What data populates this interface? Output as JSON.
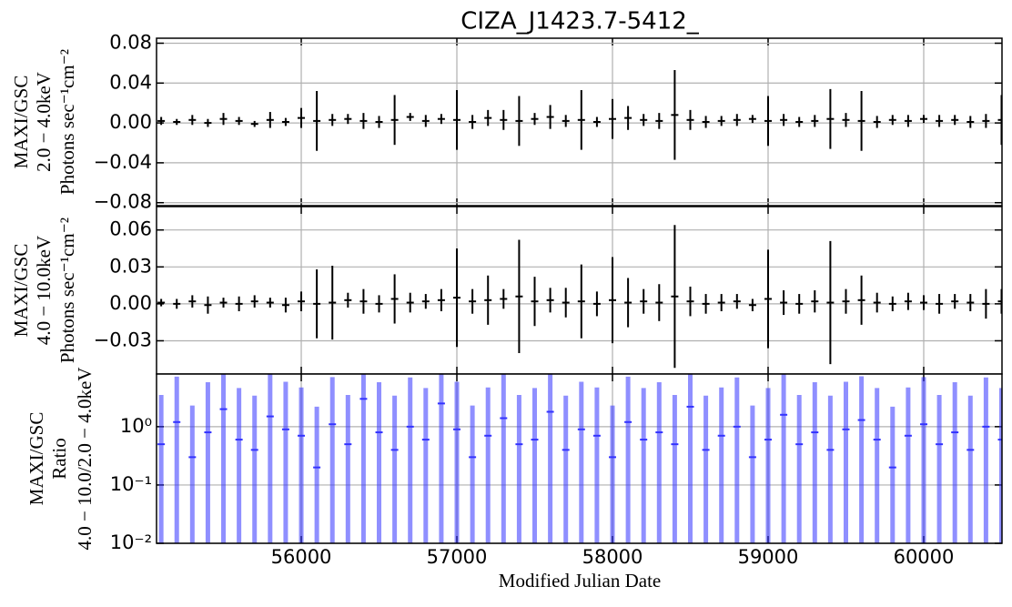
{
  "chart_data": [
    {
      "type": "errorbar",
      "title": "CIZA_J1423.7-5412_",
      "ylabel": [
        "MAXI/GSC",
        "2.0 − 4.0keV",
        "Photons sec⁻¹cm⁻²"
      ],
      "color": "#000000",
      "grid": true,
      "log_y": false,
      "show_xticklabels": false,
      "xlim": [
        55070,
        60503
      ],
      "xticks": [
        56000,
        57000,
        58000,
        59000,
        60000
      ],
      "ylim": [
        -0.083,
        0.085
      ],
      "yticks": [
        {
          "value": 0.08,
          "label": "0.08"
        },
        {
          "value": 0.04,
          "label": "0.04"
        },
        {
          "value": 0,
          "label": "0.00"
        },
        {
          "value": -0.04,
          "label": "−0.04"
        },
        {
          "value": -0.08,
          "label": "−0.08"
        }
      ],
      "x": [
        55100,
        55200,
        55300,
        55400,
        55500,
        55600,
        55700,
        55800,
        55900,
        56000,
        56100,
        56200,
        56300,
        56400,
        56500,
        56600,
        56700,
        56800,
        56900,
        57000,
        57100,
        57200,
        57300,
        57400,
        57500,
        57600,
        57700,
        57800,
        57900,
        58000,
        58100,
        58200,
        58300,
        58400,
        58500,
        58600,
        58700,
        58800,
        58900,
        59000,
        59100,
        59200,
        59300,
        59400,
        59500,
        59600,
        59700,
        59800,
        59900,
        60000,
        60100,
        60200,
        60300,
        60400,
        60500
      ],
      "values": [
        0.002,
        0.001,
        0.003,
        0.0,
        0.004,
        0.002,
        -0.001,
        0.003,
        0.001,
        0.005,
        0.002,
        0.003,
        0.004,
        0.002,
        0.001,
        0.003,
        0.006,
        0.002,
        0.004,
        0.003,
        0.001,
        0.005,
        0.003,
        0.002,
        0.004,
        0.006,
        0.002,
        0.003,
        0.001,
        0.004,
        0.005,
        0.003,
        0.002,
        0.008,
        0.003,
        0.001,
        0.002,
        0.003,
        0.004,
        0.002,
        0.003,
        0.001,
        0.002,
        0.004,
        0.003,
        0.002,
        0.001,
        0.003,
        0.002,
        0.004,
        0.002,
        0.003,
        0.001,
        0.002,
        0.003
      ],
      "errors": [
        0.004,
        0.003,
        0.005,
        0.004,
        0.006,
        0.004,
        0.003,
        0.008,
        0.004,
        0.01,
        0.03,
        0.006,
        0.005,
        0.008,
        0.006,
        0.025,
        0.004,
        0.006,
        0.005,
        0.03,
        0.007,
        0.008,
        0.01,
        0.025,
        0.006,
        0.012,
        0.006,
        0.03,
        0.005,
        0.02,
        0.012,
        0.006,
        0.008,
        0.045,
        0.01,
        0.006,
        0.005,
        0.006,
        0.004,
        0.025,
        0.006,
        0.005,
        0.006,
        0.03,
        0.007,
        0.03,
        0.006,
        0.005,
        0.006,
        0.004,
        0.006,
        0.005,
        0.006,
        0.007,
        0.025
      ]
    },
    {
      "type": "errorbar",
      "ylabel": [
        "MAXI/GSC",
        "4.0 − 10.0keV",
        "Photons sec⁻¹cm⁻²"
      ],
      "color": "#000000",
      "grid": true,
      "log_y": false,
      "show_xticklabels": false,
      "xlim": [
        55070,
        60503
      ],
      "xticks": [
        56000,
        57000,
        58000,
        59000,
        60000
      ],
      "ylim": [
        -0.057,
        0.079
      ],
      "yticks": [
        {
          "value": 0.06,
          "label": "0.06"
        },
        {
          "value": 0.03,
          "label": "0.03"
        },
        {
          "value": 0,
          "label": "0.00"
        },
        {
          "value": -0.03,
          "label": "−0.03"
        }
      ],
      "x": [
        55100,
        55200,
        55300,
        55400,
        55500,
        55600,
        55700,
        55800,
        55900,
        56000,
        56100,
        56200,
        56300,
        56400,
        56500,
        56600,
        56700,
        56800,
        56900,
        57000,
        57100,
        57200,
        57300,
        57400,
        57500,
        57600,
        57700,
        57800,
        57900,
        58000,
        58100,
        58200,
        58300,
        58400,
        58500,
        58600,
        58700,
        58800,
        58900,
        59000,
        59100,
        59200,
        59300,
        59400,
        59500,
        59600,
        59700,
        59800,
        59900,
        60000,
        60100,
        60200,
        60300,
        60400,
        60500
      ],
      "values": [
        0.001,
        0.0,
        0.002,
        -0.001,
        0.001,
        0.0,
        0.002,
        0.001,
        -0.001,
        0.002,
        0.0,
        0.001,
        0.003,
        0.002,
        0.0,
        0.004,
        0.001,
        0.002,
        0.003,
        0.005,
        0.002,
        0.003,
        0.004,
        0.006,
        0.002,
        0.003,
        0.001,
        0.002,
        0.0,
        0.003,
        0.001,
        0.002,
        0.001,
        0.006,
        0.002,
        0.0,
        0.001,
        0.002,
        -0.001,
        0.004,
        0.001,
        0.0,
        0.002,
        0.001,
        0.002,
        0.003,
        0.001,
        0.0,
        0.002,
        0.001,
        0.0,
        0.002,
        0.001,
        0.0,
        0.002
      ],
      "errors": [
        0.003,
        0.004,
        0.005,
        0.007,
        0.004,
        0.006,
        0.005,
        0.004,
        0.006,
        0.008,
        0.028,
        0.03,
        0.006,
        0.01,
        0.007,
        0.02,
        0.008,
        0.006,
        0.009,
        0.04,
        0.01,
        0.02,
        0.008,
        0.046,
        0.02,
        0.01,
        0.012,
        0.03,
        0.01,
        0.035,
        0.02,
        0.01,
        0.015,
        0.058,
        0.012,
        0.008,
        0.007,
        0.006,
        0.005,
        0.04,
        0.01,
        0.008,
        0.009,
        0.05,
        0.01,
        0.02,
        0.008,
        0.006,
        0.007,
        0.006,
        0.008,
        0.006,
        0.007,
        0.012,
        0.01
      ]
    },
    {
      "type": "errorbar",
      "ylabel": [
        "MAXI/GSC",
        "Ratio",
        "4.0 − 10.0/2.0 − 4.0keV"
      ],
      "xlabel": "Modified Julian Date",
      "color": "#3333ff",
      "grid": true,
      "log_y": true,
      "show_xticklabels": true,
      "xlim": [
        55070,
        60503
      ],
      "xticks": [
        56000,
        57000,
        58000,
        59000,
        60000
      ],
      "ylim": [
        0.01,
        8
      ],
      "yticks": [
        {
          "value": 1,
          "label": "10⁰"
        },
        {
          "value": 0.1,
          "label": "10⁻¹"
        },
        {
          "value": 0.01,
          "label": "10⁻²"
        }
      ],
      "x": [
        55100,
        55200,
        55300,
        55400,
        55500,
        55600,
        55700,
        55800,
        55900,
        56000,
        56100,
        56200,
        56300,
        56400,
        56500,
        56600,
        56700,
        56800,
        56900,
        57000,
        57100,
        57200,
        57300,
        57400,
        57500,
        57600,
        57700,
        57800,
        57900,
        58000,
        58100,
        58200,
        58300,
        58400,
        58500,
        58600,
        58700,
        58800,
        58900,
        59000,
        59100,
        59200,
        59300,
        59400,
        59500,
        59600,
        59700,
        59800,
        59900,
        60000,
        60100,
        60200,
        60300,
        60400,
        60500
      ],
      "values": [
        0.5,
        1.2,
        0.3,
        0.8,
        2.0,
        0.6,
        0.4,
        1.5,
        0.9,
        0.7,
        0.2,
        1.1,
        0.5,
        3.0,
        0.8,
        0.4,
        1.0,
        0.6,
        2.5,
        0.9,
        0.3,
        0.7,
        1.4,
        0.5,
        0.6,
        1.8,
        0.4,
        0.9,
        0.7,
        0.3,
        1.2,
        0.6,
        0.8,
        0.5,
        2.2,
        0.4,
        0.7,
        1.0,
        0.3,
        0.6,
        1.6,
        0.5,
        0.8,
        0.4,
        0.9,
        1.3,
        0.6,
        0.2,
        0.7,
        1.1,
        0.5,
        0.8,
        0.4,
        1.0,
        0.6
      ],
      "errors": [
        3,
        6,
        2,
        5,
        8,
        4,
        3,
        7,
        5,
        4,
        2,
        6,
        3,
        9,
        5,
        3,
        6,
        4,
        8,
        5,
        2,
        4,
        7,
        3,
        4,
        8,
        3,
        5,
        4,
        2,
        6,
        4,
        5,
        3,
        9,
        3,
        4,
        6,
        2,
        4,
        7,
        3,
        5,
        3,
        5,
        6,
        4,
        2,
        4,
        6,
        3,
        5,
        3,
        6,
        4
      ]
    }
  ]
}
